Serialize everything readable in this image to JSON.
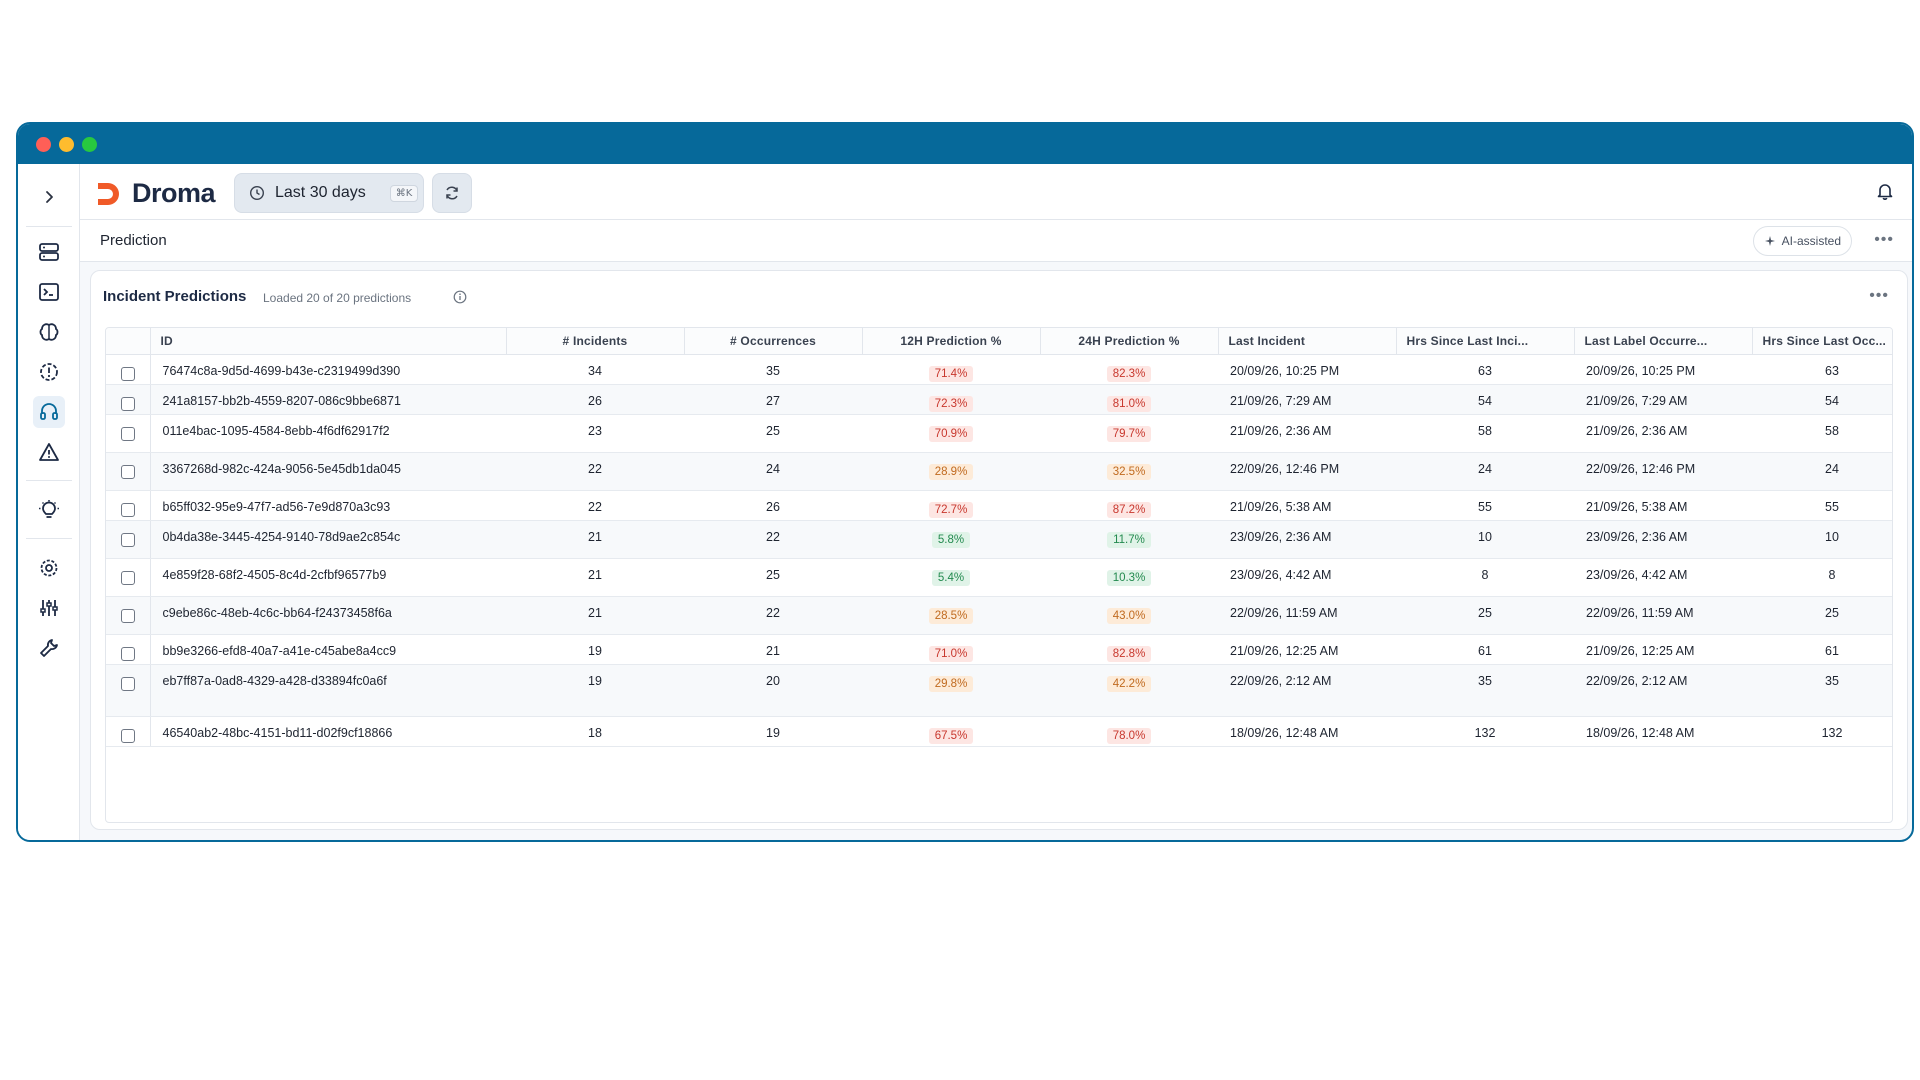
{
  "app": {
    "brand": "Droma",
    "window_controls": [
      "#ff5f57",
      "#febc2e",
      "#28c840"
    ],
    "accent": "#06699a",
    "logo_color": "#f05a28"
  },
  "toolbar": {
    "range_label": "Last 30 days",
    "range_shortcut": "⌘K",
    "refresh_icon": "refresh-icon",
    "bell_icon": "bell-icon"
  },
  "rail": {
    "items": [
      "servers-icon",
      "terminal-icon",
      "brain-icon",
      "alert-circle-icon",
      "headset-icon",
      "warning-icon",
      "lightbulb-icon",
      "gear-icon",
      "sliders-icon",
      "wrench-icon"
    ]
  },
  "page": {
    "title": "Prediction",
    "ai_label": "AI-assisted"
  },
  "card": {
    "title": "Incident Predictions",
    "subtitle": "Loaded 20 of 20 predictions"
  },
  "table": {
    "columns": [
      "ID",
      "# Incidents",
      "# Occurrences",
      "12H Prediction %",
      "24H Prediction %",
      "Last Incident",
      "Hrs Since Last Inci...",
      "Last Label Occurre...",
      "Hrs Since Last Occ..."
    ],
    "rows": [
      {
        "id": "76474c8a-9d5d-4699-b43e-c2319499d390",
        "incidents": "34",
        "occurrences": "35",
        "p12": "71.4%",
        "p12_level": "hi",
        "p24": "82.3%",
        "p24_level": "hi",
        "last_incident": "20/09/26, 10:25 PM",
        "hrs_inc": "63",
        "last_label": "20/09/26, 10:25 PM",
        "hrs_occ": "63"
      },
      {
        "id": "241a8157-bb2b-4559-8207-086c9bbe6871",
        "incidents": "26",
        "occurrences": "27",
        "p12": "72.3%",
        "p12_level": "hi",
        "p24": "81.0%",
        "p24_level": "hi",
        "last_incident": "21/09/26, 7:29 AM",
        "hrs_inc": "54",
        "last_label": "21/09/26, 7:29 AM",
        "hrs_occ": "54"
      },
      {
        "id": "011e4bac-1095-4584-8ebb-4f6df62917f2",
        "incidents": "23",
        "occurrences": "25",
        "p12": "70.9%",
        "p12_level": "hi",
        "p24": "79.7%",
        "p24_level": "hi",
        "last_incident": "21/09/26, 2:36 AM",
        "hrs_inc": "58",
        "last_label": "21/09/26, 2:36 AM",
        "hrs_occ": "58"
      },
      {
        "id": "3367268d-982c-424a-9056-5e45db1da045",
        "incidents": "22",
        "occurrences": "24",
        "p12": "28.9%",
        "p12_level": "mid",
        "p24": "32.5%",
        "p24_level": "mid",
        "last_incident": "22/09/26, 12:46 PM",
        "hrs_inc": "24",
        "last_label": "22/09/26, 12:46 PM",
        "hrs_occ": "24"
      },
      {
        "id": "b65ff032-95e9-47f7-ad56-7e9d870a3c93",
        "incidents": "22",
        "occurrences": "26",
        "p12": "72.7%",
        "p12_level": "hi",
        "p24": "87.2%",
        "p24_level": "hi",
        "last_incident": "21/09/26, 5:38 AM",
        "hrs_inc": "55",
        "last_label": "21/09/26, 5:38 AM",
        "hrs_occ": "55"
      },
      {
        "id": "0b4da38e-3445-4254-9140-78d9ae2c854c",
        "incidents": "21",
        "occurrences": "22",
        "p12": "5.8%",
        "p12_level": "lo",
        "p24": "11.7%",
        "p24_level": "lo",
        "last_incident": "23/09/26, 2:36 AM",
        "hrs_inc": "10",
        "last_label": "23/09/26, 2:36 AM",
        "hrs_occ": "10"
      },
      {
        "id": "4e859f28-68f2-4505-8c4d-2cfbf96577b9",
        "incidents": "21",
        "occurrences": "25",
        "p12": "5.4%",
        "p12_level": "lo",
        "p24": "10.3%",
        "p24_level": "lo",
        "last_incident": "23/09/26, 4:42 AM",
        "hrs_inc": "8",
        "last_label": "23/09/26, 4:42 AM",
        "hrs_occ": "8"
      },
      {
        "id": "c9ebe86c-48eb-4c6c-bb64-f24373458f6a",
        "incidents": "21",
        "occurrences": "22",
        "p12": "28.5%",
        "p12_level": "mid",
        "p24": "43.0%",
        "p24_level": "mid",
        "last_incident": "22/09/26, 11:59 AM",
        "hrs_inc": "25",
        "last_label": "22/09/26, 11:59 AM",
        "hrs_occ": "25"
      },
      {
        "id": "bb9e3266-efd8-40a7-a41e-c45abe8a4cc9",
        "incidents": "19",
        "occurrences": "21",
        "p12": "71.0%",
        "p12_level": "hi",
        "p24": "82.8%",
        "p24_level": "hi",
        "last_incident": "21/09/26, 12:25 AM",
        "hrs_inc": "61",
        "last_label": "21/09/26, 12:25 AM",
        "hrs_occ": "61"
      },
      {
        "id": "eb7ff87a-0ad8-4329-a428-d33894fc0a6f",
        "incidents": "19",
        "occurrences": "20",
        "p12": "29.8%",
        "p12_level": "mid",
        "p24": "42.2%",
        "p24_level": "mid",
        "last_incident": "22/09/26, 2:12 AM",
        "hrs_inc": "35",
        "last_label": "22/09/26, 2:12 AM",
        "hrs_occ": "35"
      },
      {
        "id": "46540ab2-48bc-4151-bd11-d02f9cf18866",
        "incidents": "18",
        "occurrences": "19",
        "p12": "67.5%",
        "p12_level": "hi",
        "p24": "78.0%",
        "p24_level": "hi",
        "last_incident": "18/09/26, 12:48 AM",
        "hrs_inc": "132",
        "last_label": "18/09/26, 12:48 AM",
        "hrs_occ": "132"
      }
    ]
  }
}
